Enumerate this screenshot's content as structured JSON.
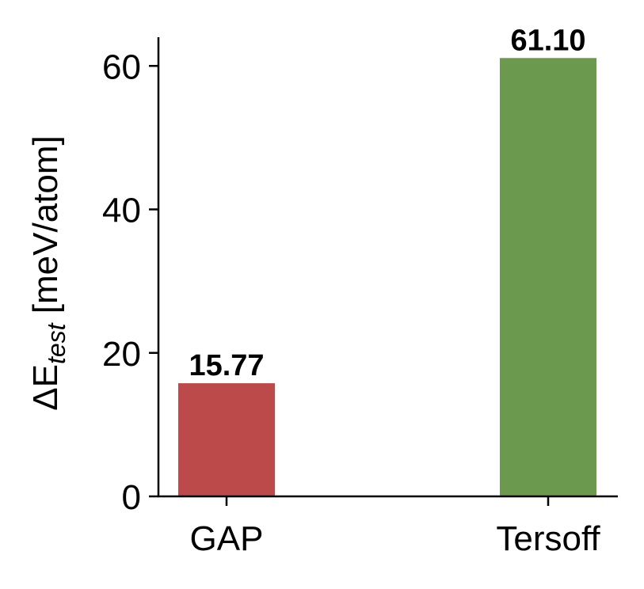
{
  "chart_data": {
    "type": "bar",
    "categories": [
      "GAP",
      "Tersoff"
    ],
    "values": [
      15.77,
      61.1
    ],
    "value_labels": [
      "15.77",
      "61.10"
    ],
    "colors": [
      "#bd4a4a",
      "#6b9a4f"
    ],
    "title": "",
    "xlabel": "",
    "ylabel": {
      "prefix": "ΔE",
      "subscript": "test",
      "suffix": " [meV/atom]"
    },
    "ylim": [
      0,
      64
    ],
    "yticks": [
      0,
      20,
      40,
      60
    ],
    "ytick_labels": [
      "0",
      "20",
      "40",
      "60"
    ],
    "grid": false,
    "legend": "none"
  }
}
